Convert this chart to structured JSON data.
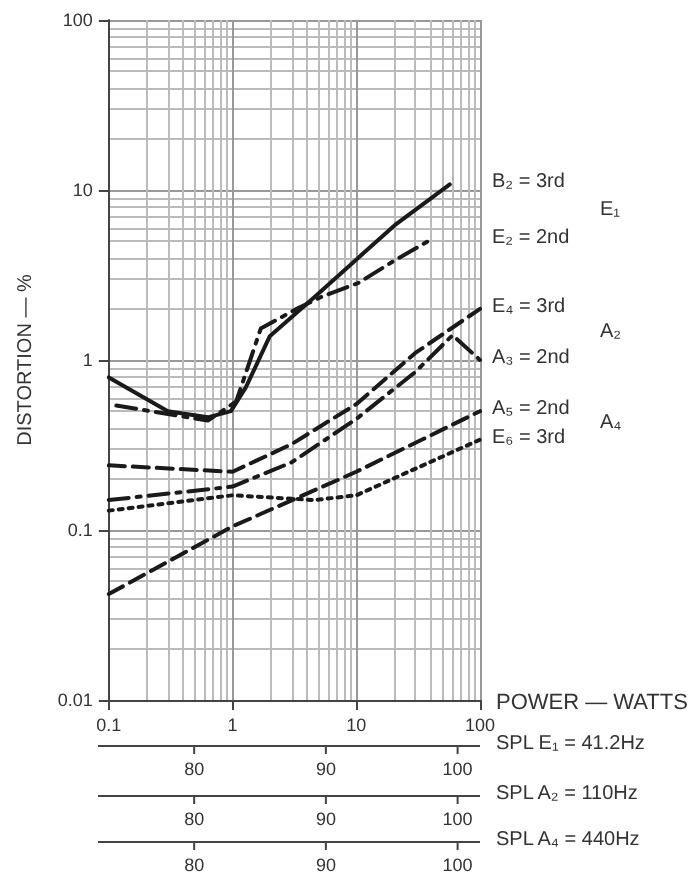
{
  "chart_data": {
    "type": "line",
    "xlabel": "POWER — WATTS",
    "ylabel": "DISTORTION — %",
    "log": "xy",
    "grid": true,
    "xlim": [
      0.1,
      100
    ],
    "xticks": [
      0.1,
      1,
      10,
      100
    ],
    "ylim": [
      0.01,
      100
    ],
    "yticks": [
      0.01,
      0.1,
      1,
      10,
      100
    ],
    "x2label": "SPL E₁ = 41.2Hz",
    "x2lim": [
      72.7,
      101.7
    ],
    "x2ticks": [
      80,
      90,
      100
    ],
    "annotations": [
      "E₁",
      "A₂",
      "A₄",
      "SPL A₂ = 110Hz",
      "80",
      "90",
      "100",
      "SPL A₄ = 440Hz",
      "80",
      "90",
      "100"
    ],
    "series": [
      {
        "name": "B₂ = 3rd",
        "color": "#1a1a1a",
        "line_style": "solid",
        "x": [
          0.1,
          0.3,
          0.63,
          0.97,
          1.28,
          2.0,
          4.6,
          10.4,
          21,
          57
        ],
        "values": [
          0.79,
          0.5,
          0.46,
          0.5,
          0.69,
          1.38,
          2.35,
          4.0,
          6.3,
          10.8
        ]
      },
      {
        "name": "E₂ = 2nd",
        "color": "#1a1a1a",
        "line_style": "dashdot",
        "x": [
          0.115,
          0.63,
          1.07,
          1.37,
          1.69,
          3.3,
          5.2,
          10.4,
          21,
          40
        ],
        "values": [
          0.54,
          0.44,
          0.57,
          0.97,
          1.53,
          2.0,
          2.35,
          2.84,
          3.9,
          5.1
        ]
      },
      {
        "name": "E₄ = 3rd",
        "color": "#1a1a1a",
        "line_style": "dashed",
        "x": [
          0.1,
          1,
          3,
          10,
          30,
          100
        ],
        "values": [
          0.24,
          0.22,
          0.32,
          0.55,
          1.1,
          2.0
        ]
      },
      {
        "name": "A₃ = 2nd",
        "color": "#1a1a1a",
        "line_style": "dashdot",
        "x": [
          0.1,
          1,
          3,
          10,
          30,
          60,
          100
        ],
        "values": [
          0.15,
          0.18,
          0.25,
          0.45,
          0.85,
          1.4,
          1.0
        ]
      },
      {
        "name": "A₅ = 2nd",
        "color": "#1a1a1a",
        "line_style": "dashed",
        "x": [
          0.1,
          1,
          10,
          100
        ],
        "values": [
          0.042,
          0.105,
          0.22,
          0.5
        ]
      },
      {
        "name": "E₆ = 3rd",
        "color": "#1a1a1a",
        "line_style": "dotted",
        "x": [
          0.1,
          1,
          4.6,
          10,
          100
        ],
        "values": [
          0.13,
          0.16,
          0.15,
          0.16,
          0.34
        ]
      }
    ]
  }
}
